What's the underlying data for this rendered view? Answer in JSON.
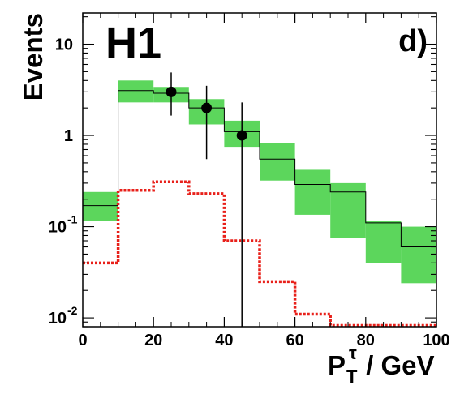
{
  "chart_data": {
    "type": "bar",
    "experiment_label": "H1",
    "panel_label": "d)",
    "xlabel": {
      "base": "P",
      "sub": "T",
      "sup": "τ",
      "rest": " / GeV"
    },
    "ylabel": "Events",
    "xlim": [
      0,
      100
    ],
    "ylim": [
      0.008,
      22
    ],
    "y_scale": "log",
    "grid": false,
    "x_ticks": [
      0,
      20,
      40,
      60,
      80,
      100
    ],
    "y_ticks": [
      {
        "value": 0.01,
        "mantissa": "10",
        "exp": "-2"
      },
      {
        "value": 0.1,
        "mantissa": "10",
        "exp": "-1"
      },
      {
        "value": 1,
        "mantissa": "1",
        "exp": ""
      },
      {
        "value": 10,
        "mantissa": "10",
        "exp": ""
      }
    ],
    "bin_edges": [
      0,
      10,
      20,
      30,
      40,
      50,
      60,
      70,
      80,
      90,
      100
    ],
    "series": [
      {
        "kind": "mc_band",
        "color": "#5cd65c",
        "central": [
          0.17,
          3.1,
          2.9,
          2.0,
          1.1,
          0.55,
          0.29,
          0.24,
          0.11,
          0.06
        ],
        "low": [
          0.115,
          2.3,
          2.3,
          1.32,
          0.75,
          0.32,
          0.135,
          0.075,
          0.04,
          0.024
        ],
        "high": [
          0.24,
          4.0,
          3.4,
          2.5,
          1.45,
          0.83,
          0.42,
          0.3,
          0.115,
          0.1
        ]
      },
      {
        "kind": "signal",
        "color": "#e8201a",
        "values": [
          0.04,
          0.25,
          0.31,
          0.23,
          0.07,
          0.025,
          0.011,
          0.008,
          0.008,
          0.008
        ]
      },
      {
        "kind": "data",
        "color": "#000000",
        "points": [
          {
            "x": 25,
            "y": 3.0,
            "ylo": 1.65,
            "yhi": 4.9
          },
          {
            "x": 35,
            "y": 2.0,
            "ylo": 0.55,
            "yhi": 3.5
          },
          {
            "x": 45,
            "y": 1.0,
            "ylo": 0.008,
            "yhi": 2.3
          }
        ]
      }
    ]
  }
}
